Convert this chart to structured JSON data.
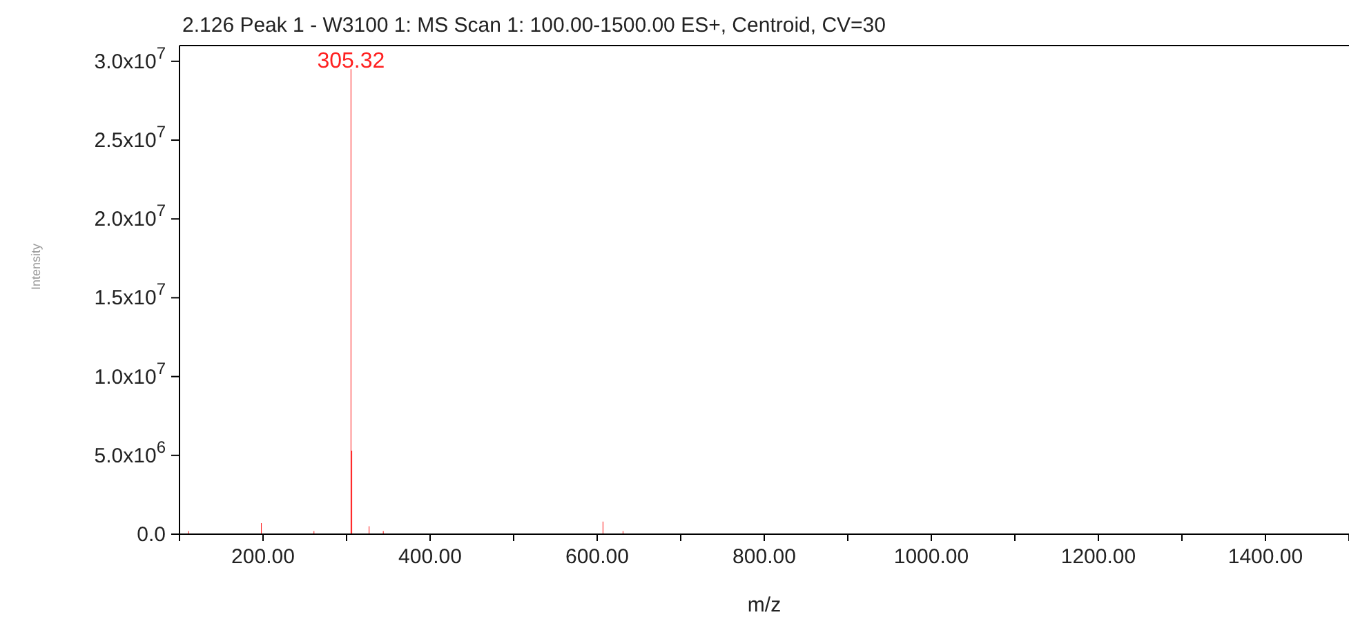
{
  "chart_data": {
    "type": "bar",
    "title": "2.126 Peak 1 - W3100 1: MS Scan 1: 100.00-1500.00 ES+, Centroid, CV=30",
    "xlabel": "m/z",
    "ylabel": "Intensity",
    "x": [
      111,
      198,
      261,
      305.32,
      306.3,
      327,
      344,
      607,
      631
    ],
    "series": [
      {
        "color": "#ff2020",
        "values": [
          200000,
          700000,
          200000,
          29500000,
          5300000,
          500000,
          200000,
          800000,
          200000
        ]
      }
    ],
    "annotations": [
      {
        "text": "305.32",
        "x": 305.32,
        "y": 29500000
      }
    ],
    "xlim": [
      100,
      1500
    ],
    "xticks": [
      {
        "value": 100,
        "label": null
      },
      {
        "value": 200,
        "label": "200.00"
      },
      {
        "value": 300,
        "label": null
      },
      {
        "value": 400,
        "label": "400.00"
      },
      {
        "value": 500,
        "label": null
      },
      {
        "value": 600,
        "label": "600.00"
      },
      {
        "value": 700,
        "label": null
      },
      {
        "value": 800,
        "label": "800.00"
      },
      {
        "value": 900,
        "label": null
      },
      {
        "value": 1000,
        "label": "1000.00"
      },
      {
        "value": 1100,
        "label": null
      },
      {
        "value": 1200,
        "label": "1200.00"
      },
      {
        "value": 1300,
        "label": null
      },
      {
        "value": 1400,
        "label": "1400.00"
      },
      {
        "value": 1500,
        "label": null
      }
    ],
    "ylim": [
      0,
      31000000
    ],
    "yticks": [
      {
        "value": 0,
        "label": "0.0"
      },
      {
        "value": 5000000,
        "label": "5.0x10$^{6}$"
      },
      {
        "value": 10000000,
        "label": "1.0x10$^{7}$"
      },
      {
        "value": 15000000,
        "label": "1.5x10$^{7}$"
      },
      {
        "value": 20000000,
        "label": "2.0x10$^{7}$"
      },
      {
        "value": 25000000,
        "label": "2.5x10$^{7}$"
      },
      {
        "value": 30000000,
        "label": "3.0x10$^{7}$"
      }
    ],
    "grid": false,
    "legend": false
  }
}
